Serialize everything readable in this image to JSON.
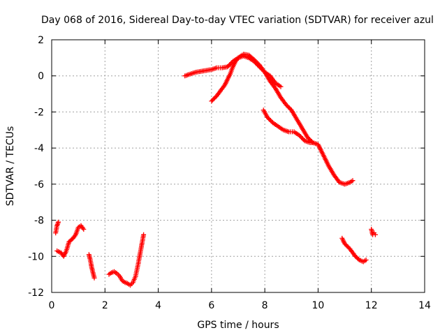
{
  "chart_data": {
    "type": "scatter",
    "title": "Day 068 of 2016, Sidereal Day-to-day VTEC variation (SDTVAR) for receiver azul",
    "xlabel": "GPS time / hours",
    "ylabel": "SDTVAR / TECUs",
    "xlim": [
      0,
      14
    ],
    "ylim": [
      -12,
      2
    ],
    "xticks": [
      "0",
      "2",
      "4",
      "6",
      "8",
      "10",
      "12",
      "14"
    ],
    "yticks": [
      "-12",
      "-10",
      "-8",
      "-6",
      "-4",
      "-2",
      "0",
      "2"
    ],
    "grid": true,
    "marker": "plus",
    "color": "#ff0000",
    "segments": [
      [
        [
          0.15,
          -8.7
        ],
        [
          0.2,
          -8.3
        ],
        [
          0.25,
          -8.1
        ]
      ],
      [
        [
          0.2,
          -9.7
        ],
        [
          0.35,
          -9.8
        ],
        [
          0.45,
          -10.0
        ],
        [
          0.55,
          -9.7
        ],
        [
          0.65,
          -9.2
        ],
        [
          0.8,
          -9.0
        ],
        [
          0.9,
          -8.8
        ],
        [
          1.0,
          -8.4
        ],
        [
          1.1,
          -8.3
        ],
        [
          1.2,
          -8.5
        ]
      ],
      [
        [
          1.4,
          -9.9
        ],
        [
          1.45,
          -10.2
        ],
        [
          1.5,
          -10.6
        ],
        [
          1.55,
          -10.9
        ],
        [
          1.6,
          -11.2
        ]
      ],
      [
        [
          2.15,
          -11.0
        ],
        [
          2.25,
          -10.9
        ],
        [
          2.35,
          -10.85
        ],
        [
          2.45,
          -10.95
        ],
        [
          2.55,
          -11.1
        ],
        [
          2.65,
          -11.35
        ],
        [
          2.75,
          -11.45
        ],
        [
          2.85,
          -11.5
        ],
        [
          2.95,
          -11.6
        ],
        [
          3.05,
          -11.45
        ],
        [
          3.15,
          -11.1
        ],
        [
          3.25,
          -10.4
        ],
        [
          3.3,
          -10.0
        ],
        [
          3.35,
          -9.6
        ],
        [
          3.4,
          -9.2
        ],
        [
          3.45,
          -8.8
        ]
      ],
      [
        [
          5.0,
          0.0
        ],
        [
          5.2,
          0.1
        ],
        [
          5.4,
          0.2
        ],
        [
          5.6,
          0.25
        ],
        [
          5.8,
          0.3
        ],
        [
          6.0,
          0.35
        ],
        [
          6.2,
          0.45
        ],
        [
          6.4,
          0.45
        ],
        [
          6.6,
          0.5
        ],
        [
          6.8,
          0.8
        ],
        [
          7.0,
          1.0
        ],
        [
          7.2,
          1.1
        ],
        [
          7.4,
          1.0
        ],
        [
          7.6,
          0.8
        ],
        [
          7.8,
          0.5
        ],
        [
          8.0,
          0.2
        ],
        [
          8.2,
          0.0
        ],
        [
          8.4,
          -0.4
        ],
        [
          8.6,
          -0.6
        ]
      ],
      [
        [
          6.0,
          -1.4
        ],
        [
          6.2,
          -1.1
        ],
        [
          6.4,
          -0.7
        ],
        [
          6.5,
          -0.5
        ],
        [
          6.6,
          -0.2
        ],
        [
          6.7,
          0.1
        ],
        [
          6.8,
          0.5
        ],
        [
          6.9,
          0.8
        ],
        [
          7.0,
          1.0
        ],
        [
          7.2,
          1.2
        ],
        [
          7.4,
          1.15
        ],
        [
          7.6,
          0.9
        ],
        [
          7.8,
          0.6
        ],
        [
          8.0,
          0.2
        ],
        [
          8.2,
          -0.3
        ],
        [
          8.4,
          -0.7
        ],
        [
          8.6,
          -1.2
        ],
        [
          8.8,
          -1.6
        ],
        [
          9.0,
          -1.9
        ],
        [
          9.2,
          -2.4
        ],
        [
          9.4,
          -2.9
        ],
        [
          9.6,
          -3.4
        ],
        [
          9.8,
          -3.7
        ],
        [
          10.0,
          -3.8
        ],
        [
          10.2,
          -4.4
        ],
        [
          10.4,
          -5.0
        ],
        [
          10.6,
          -5.5
        ],
        [
          10.8,
          -5.9
        ],
        [
          11.0,
          -6.0
        ],
        [
          11.2,
          -5.9
        ],
        [
          11.3,
          -5.8
        ]
      ],
      [
        [
          7.95,
          -1.9
        ],
        [
          8.1,
          -2.3
        ],
        [
          8.3,
          -2.6
        ],
        [
          8.5,
          -2.8
        ],
        [
          8.7,
          -3.0
        ],
        [
          8.9,
          -3.1
        ],
        [
          9.1,
          -3.1
        ],
        [
          9.3,
          -3.3
        ],
        [
          9.5,
          -3.6
        ],
        [
          9.7,
          -3.7
        ],
        [
          9.8,
          -3.7
        ]
      ],
      [
        [
          10.9,
          -9.0
        ],
        [
          11.0,
          -9.3
        ],
        [
          11.2,
          -9.6
        ],
        [
          11.4,
          -10.0
        ],
        [
          11.55,
          -10.2
        ],
        [
          11.7,
          -10.3
        ],
        [
          11.8,
          -10.2
        ]
      ],
      [
        [
          12.0,
          -8.5
        ],
        [
          12.05,
          -8.8
        ],
        [
          12.1,
          -8.7
        ],
        [
          12.15,
          -8.8
        ]
      ]
    ]
  }
}
